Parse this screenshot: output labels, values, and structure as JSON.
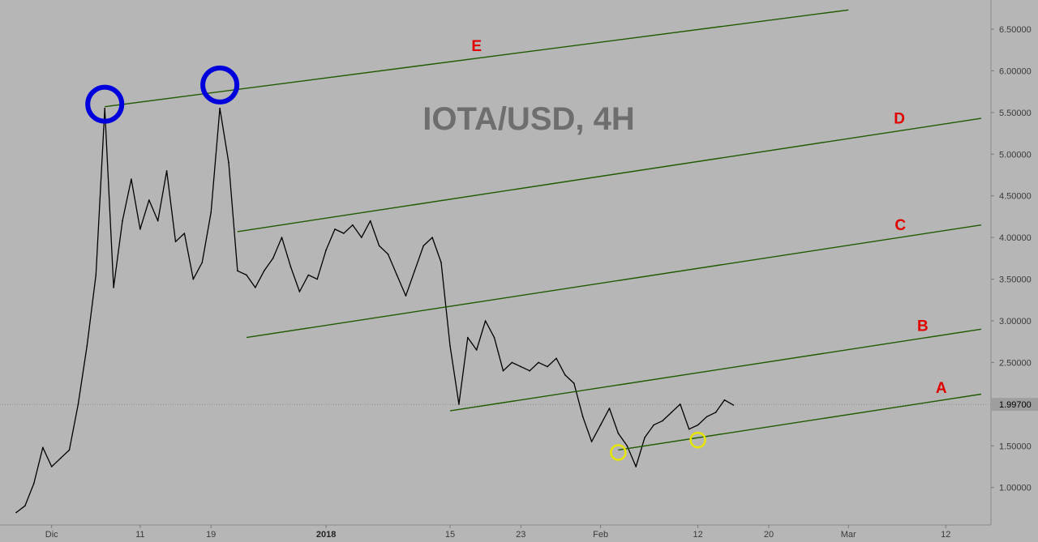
{
  "chart_data": {
    "type": "line",
    "title": "IOTA/USD, 4H",
    "y_axis": {
      "ticks": [
        "1.00000",
        "1.50000",
        "2.00000",
        "2.50000",
        "3.00000",
        "3.50000",
        "4.00000",
        "4.50000",
        "5.00000",
        "5.50000",
        "6.00000",
        "6.50000"
      ],
      "tick_values": [
        1.0,
        1.5,
        2.0,
        2.5,
        3.0,
        3.5,
        4.0,
        4.5,
        5.0,
        5.5,
        6.0,
        6.5
      ],
      "range": [
        0.55,
        6.85
      ],
      "current_price_label": "1.99700",
      "current_price": 1.997
    },
    "x_axis": {
      "ticks": [
        "Dic",
        "11",
        "19",
        "2018",
        "15",
        "23",
        "Feb",
        "12",
        "20",
        "Mar",
        "12"
      ],
      "bold_ticks": [
        "2018"
      ],
      "range": [
        "2017-11-27",
        "2018-03-16"
      ]
    },
    "series": [
      {
        "points": [
          [
            "2017-11-27",
            0.7
          ],
          [
            "2017-11-28",
            0.78
          ],
          [
            "2017-11-29",
            1.05
          ],
          [
            "2017-11-30",
            1.48
          ],
          [
            "2017-12-01",
            1.25
          ],
          [
            "2017-12-02",
            1.35
          ],
          [
            "2017-12-03",
            1.45
          ],
          [
            "2017-12-04",
            2.0
          ],
          [
            "2017-12-05",
            2.7
          ],
          [
            "2017-12-06",
            3.55
          ],
          [
            "2017-12-07",
            5.55
          ],
          [
            "2017-12-08",
            3.4
          ],
          [
            "2017-12-09",
            4.2
          ],
          [
            "2017-12-10",
            4.7
          ],
          [
            "2017-12-11",
            4.1
          ],
          [
            "2017-12-12",
            4.45
          ],
          [
            "2017-12-13",
            4.2
          ],
          [
            "2017-12-14",
            4.8
          ],
          [
            "2017-12-15",
            3.95
          ],
          [
            "2017-12-16",
            4.05
          ],
          [
            "2017-12-17",
            3.5
          ],
          [
            "2017-12-18",
            3.7
          ],
          [
            "2017-12-19",
            4.3
          ],
          [
            "2017-12-20",
            5.55
          ],
          [
            "2017-12-21",
            4.9
          ],
          [
            "2017-12-22",
            3.6
          ],
          [
            "2017-12-23",
            3.55
          ],
          [
            "2017-12-24",
            3.4
          ],
          [
            "2017-12-25",
            3.6
          ],
          [
            "2017-12-26",
            3.75
          ],
          [
            "2017-12-27",
            4.0
          ],
          [
            "2017-12-28",
            3.65
          ],
          [
            "2017-12-29",
            3.35
          ],
          [
            "2017-12-30",
            3.55
          ],
          [
            "2017-12-31",
            3.5
          ],
          [
            "2018-01-01",
            3.85
          ],
          [
            "2018-01-02",
            4.1
          ],
          [
            "2018-01-03",
            4.05
          ],
          [
            "2018-01-04",
            4.15
          ],
          [
            "2018-01-05",
            4.0
          ],
          [
            "2018-01-06",
            4.2
          ],
          [
            "2018-01-07",
            3.9
          ],
          [
            "2018-01-08",
            3.8
          ],
          [
            "2018-01-09",
            3.55
          ],
          [
            "2018-01-10",
            3.3
          ],
          [
            "2018-01-11",
            3.6
          ],
          [
            "2018-01-12",
            3.9
          ],
          [
            "2018-01-13",
            4.0
          ],
          [
            "2018-01-14",
            3.7
          ],
          [
            "2018-01-15",
            2.7
          ],
          [
            "2018-01-16",
            2.0
          ],
          [
            "2018-01-17",
            2.8
          ],
          [
            "2018-01-18",
            2.65
          ],
          [
            "2018-01-19",
            3.0
          ],
          [
            "2018-01-20",
            2.8
          ],
          [
            "2018-01-21",
            2.4
          ],
          [
            "2018-01-22",
            2.5
          ],
          [
            "2018-01-23",
            2.45
          ],
          [
            "2018-01-24",
            2.4
          ],
          [
            "2018-01-25",
            2.5
          ],
          [
            "2018-01-26",
            2.45
          ],
          [
            "2018-01-27",
            2.55
          ],
          [
            "2018-01-28",
            2.35
          ],
          [
            "2018-01-29",
            2.25
          ],
          [
            "2018-01-30",
            1.85
          ],
          [
            "2018-01-31",
            1.55
          ],
          [
            "2018-02-01",
            1.75
          ],
          [
            "2018-02-02",
            1.95
          ],
          [
            "2018-02-03",
            1.65
          ],
          [
            "2018-02-04",
            1.5
          ],
          [
            "2018-02-05",
            1.25
          ],
          [
            "2018-02-06",
            1.6
          ],
          [
            "2018-02-07",
            1.75
          ],
          [
            "2018-02-08",
            1.8
          ],
          [
            "2018-02-09",
            1.9
          ],
          [
            "2018-02-10",
            2.0
          ],
          [
            "2018-02-11",
            1.7
          ],
          [
            "2018-02-12",
            1.75
          ],
          [
            "2018-02-13",
            1.85
          ],
          [
            "2018-02-14",
            1.9
          ],
          [
            "2018-02-15",
            2.05
          ],
          [
            "2018-02-16",
            1.99
          ]
        ]
      }
    ],
    "trendlines": [
      {
        "label": "E",
        "x1": "2017-12-07",
        "y1": 5.57,
        "x2": "2018-03-01",
        "y2": 6.73
      },
      {
        "label": "D",
        "x1": "2017-12-22",
        "y1": 4.07,
        "x2": "2018-03-16",
        "y2": 5.43
      },
      {
        "label": "C",
        "x1": "2017-12-23",
        "y1": 2.8,
        "x2": "2018-03-16",
        "y2": 4.15
      },
      {
        "label": "B",
        "x1": "2018-01-15",
        "y1": 1.92,
        "x2": "2018-03-16",
        "y2": 2.9
      },
      {
        "label": "A",
        "x1": "2018-02-03",
        "y1": 1.45,
        "x2": "2018-03-16",
        "y2": 2.12
      }
    ],
    "highlight_circles": [
      {
        "color": "#0000dd",
        "x": "2017-12-07",
        "y": 5.6,
        "size": "large"
      },
      {
        "color": "#0000dd",
        "x": "2017-12-20",
        "y": 5.83,
        "size": "large"
      },
      {
        "color": "#e6e600",
        "x": "2018-02-03",
        "y": 1.42,
        "size": "small"
      },
      {
        "color": "#e6e600",
        "x": "2018-02-12",
        "y": 1.57,
        "size": "small"
      }
    ],
    "grid": false,
    "colors": {
      "background": "#b6b6b6",
      "price_line": "#000000",
      "trendline": "#1f5a00",
      "line_label": "#e00000",
      "axis_text": "#3a3a3a",
      "title": "#6e6e6e"
    }
  }
}
